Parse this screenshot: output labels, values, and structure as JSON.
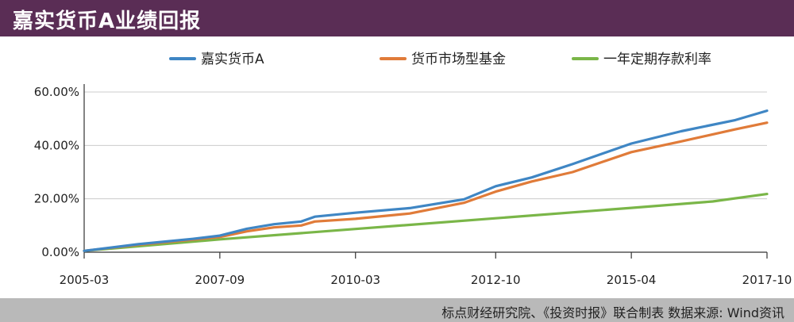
{
  "header": {
    "title": "嘉实货币A业绩回报"
  },
  "footer": {
    "source": "标点财经研究院、《投资时报》联合制表    数据来源: Wind资讯"
  },
  "colors": {
    "header_bg": "#5a2d55",
    "footer_bg": "#b9b9b9",
    "fund": "#3f86c4",
    "mmf": "#e07b39",
    "deposit": "#7ab648",
    "grid": "#cccccc"
  },
  "chart_data": {
    "type": "line",
    "title": "",
    "xlabel": "",
    "ylabel": "",
    "ylim": [
      0,
      60
    ],
    "y_ticks": [
      "0.00%",
      "20.00%",
      "40.00%",
      "60.00%"
    ],
    "x_ticks": [
      "2005-03",
      "2007-09",
      "2010-03",
      "2012-10",
      "2015-04",
      "2017-10"
    ],
    "grid": "horizontal",
    "legend_position": "top",
    "series": [
      {
        "name": "嘉实货币A",
        "color": "#3f86c4",
        "points": [
          [
            "2005-03",
            0.5
          ],
          [
            "2006-03",
            3
          ],
          [
            "2007-03",
            5
          ],
          [
            "2007-09",
            6.2
          ],
          [
            "2008-03",
            8.8
          ],
          [
            "2008-09",
            10.5
          ],
          [
            "2009-03",
            11.5
          ],
          [
            "2009-06",
            13.3
          ],
          [
            "2010-03",
            14.8
          ],
          [
            "2011-03",
            16.5
          ],
          [
            "2012-03",
            19.8
          ],
          [
            "2012-10",
            24.7
          ],
          [
            "2013-06",
            28
          ],
          [
            "2014-03",
            33
          ],
          [
            "2015-04",
            40.7
          ],
          [
            "2016-03",
            45.3
          ],
          [
            "2017-03",
            49.5
          ],
          [
            "2017-10",
            53
          ]
        ]
      },
      {
        "name": "货币市场型基金",
        "color": "#e07b39",
        "points": [
          [
            "2005-03",
            0.5
          ],
          [
            "2006-03",
            2.8
          ],
          [
            "2007-03",
            4.7
          ],
          [
            "2007-09",
            5.7
          ],
          [
            "2008-03",
            7.8
          ],
          [
            "2008-09",
            9.3
          ],
          [
            "2009-03",
            10
          ],
          [
            "2009-06",
            11.5
          ],
          [
            "2010-03",
            12.5
          ],
          [
            "2011-03",
            14.5
          ],
          [
            "2012-03",
            18.5
          ],
          [
            "2012-10",
            22.7
          ],
          [
            "2013-06",
            26.5
          ],
          [
            "2014-03",
            30
          ],
          [
            "2015-04",
            37.5
          ],
          [
            "2016-03",
            41.5
          ],
          [
            "2017-03",
            46
          ],
          [
            "2017-10",
            48.5
          ]
        ]
      },
      {
        "name": "一年定期存款利率",
        "color": "#7ab648",
        "points": [
          [
            "2005-03",
            0.5
          ],
          [
            "2007-09",
            4.8
          ],
          [
            "2010-03",
            8.7
          ],
          [
            "2012-10",
            12.7
          ],
          [
            "2015-04",
            16.6
          ],
          [
            "2016-10",
            19
          ],
          [
            "2017-10",
            21.8
          ]
        ]
      }
    ]
  }
}
